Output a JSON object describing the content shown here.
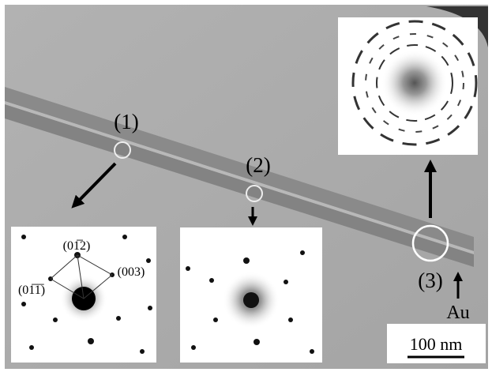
{
  "regions": [
    "(1)",
    "(2)",
    "(3)"
  ],
  "material_label": "Au",
  "diffraction_indices": [
    "(01̅2)",
    "(01̅1̅)",
    "(003)"
  ],
  "scale_bar": "100 nm"
}
